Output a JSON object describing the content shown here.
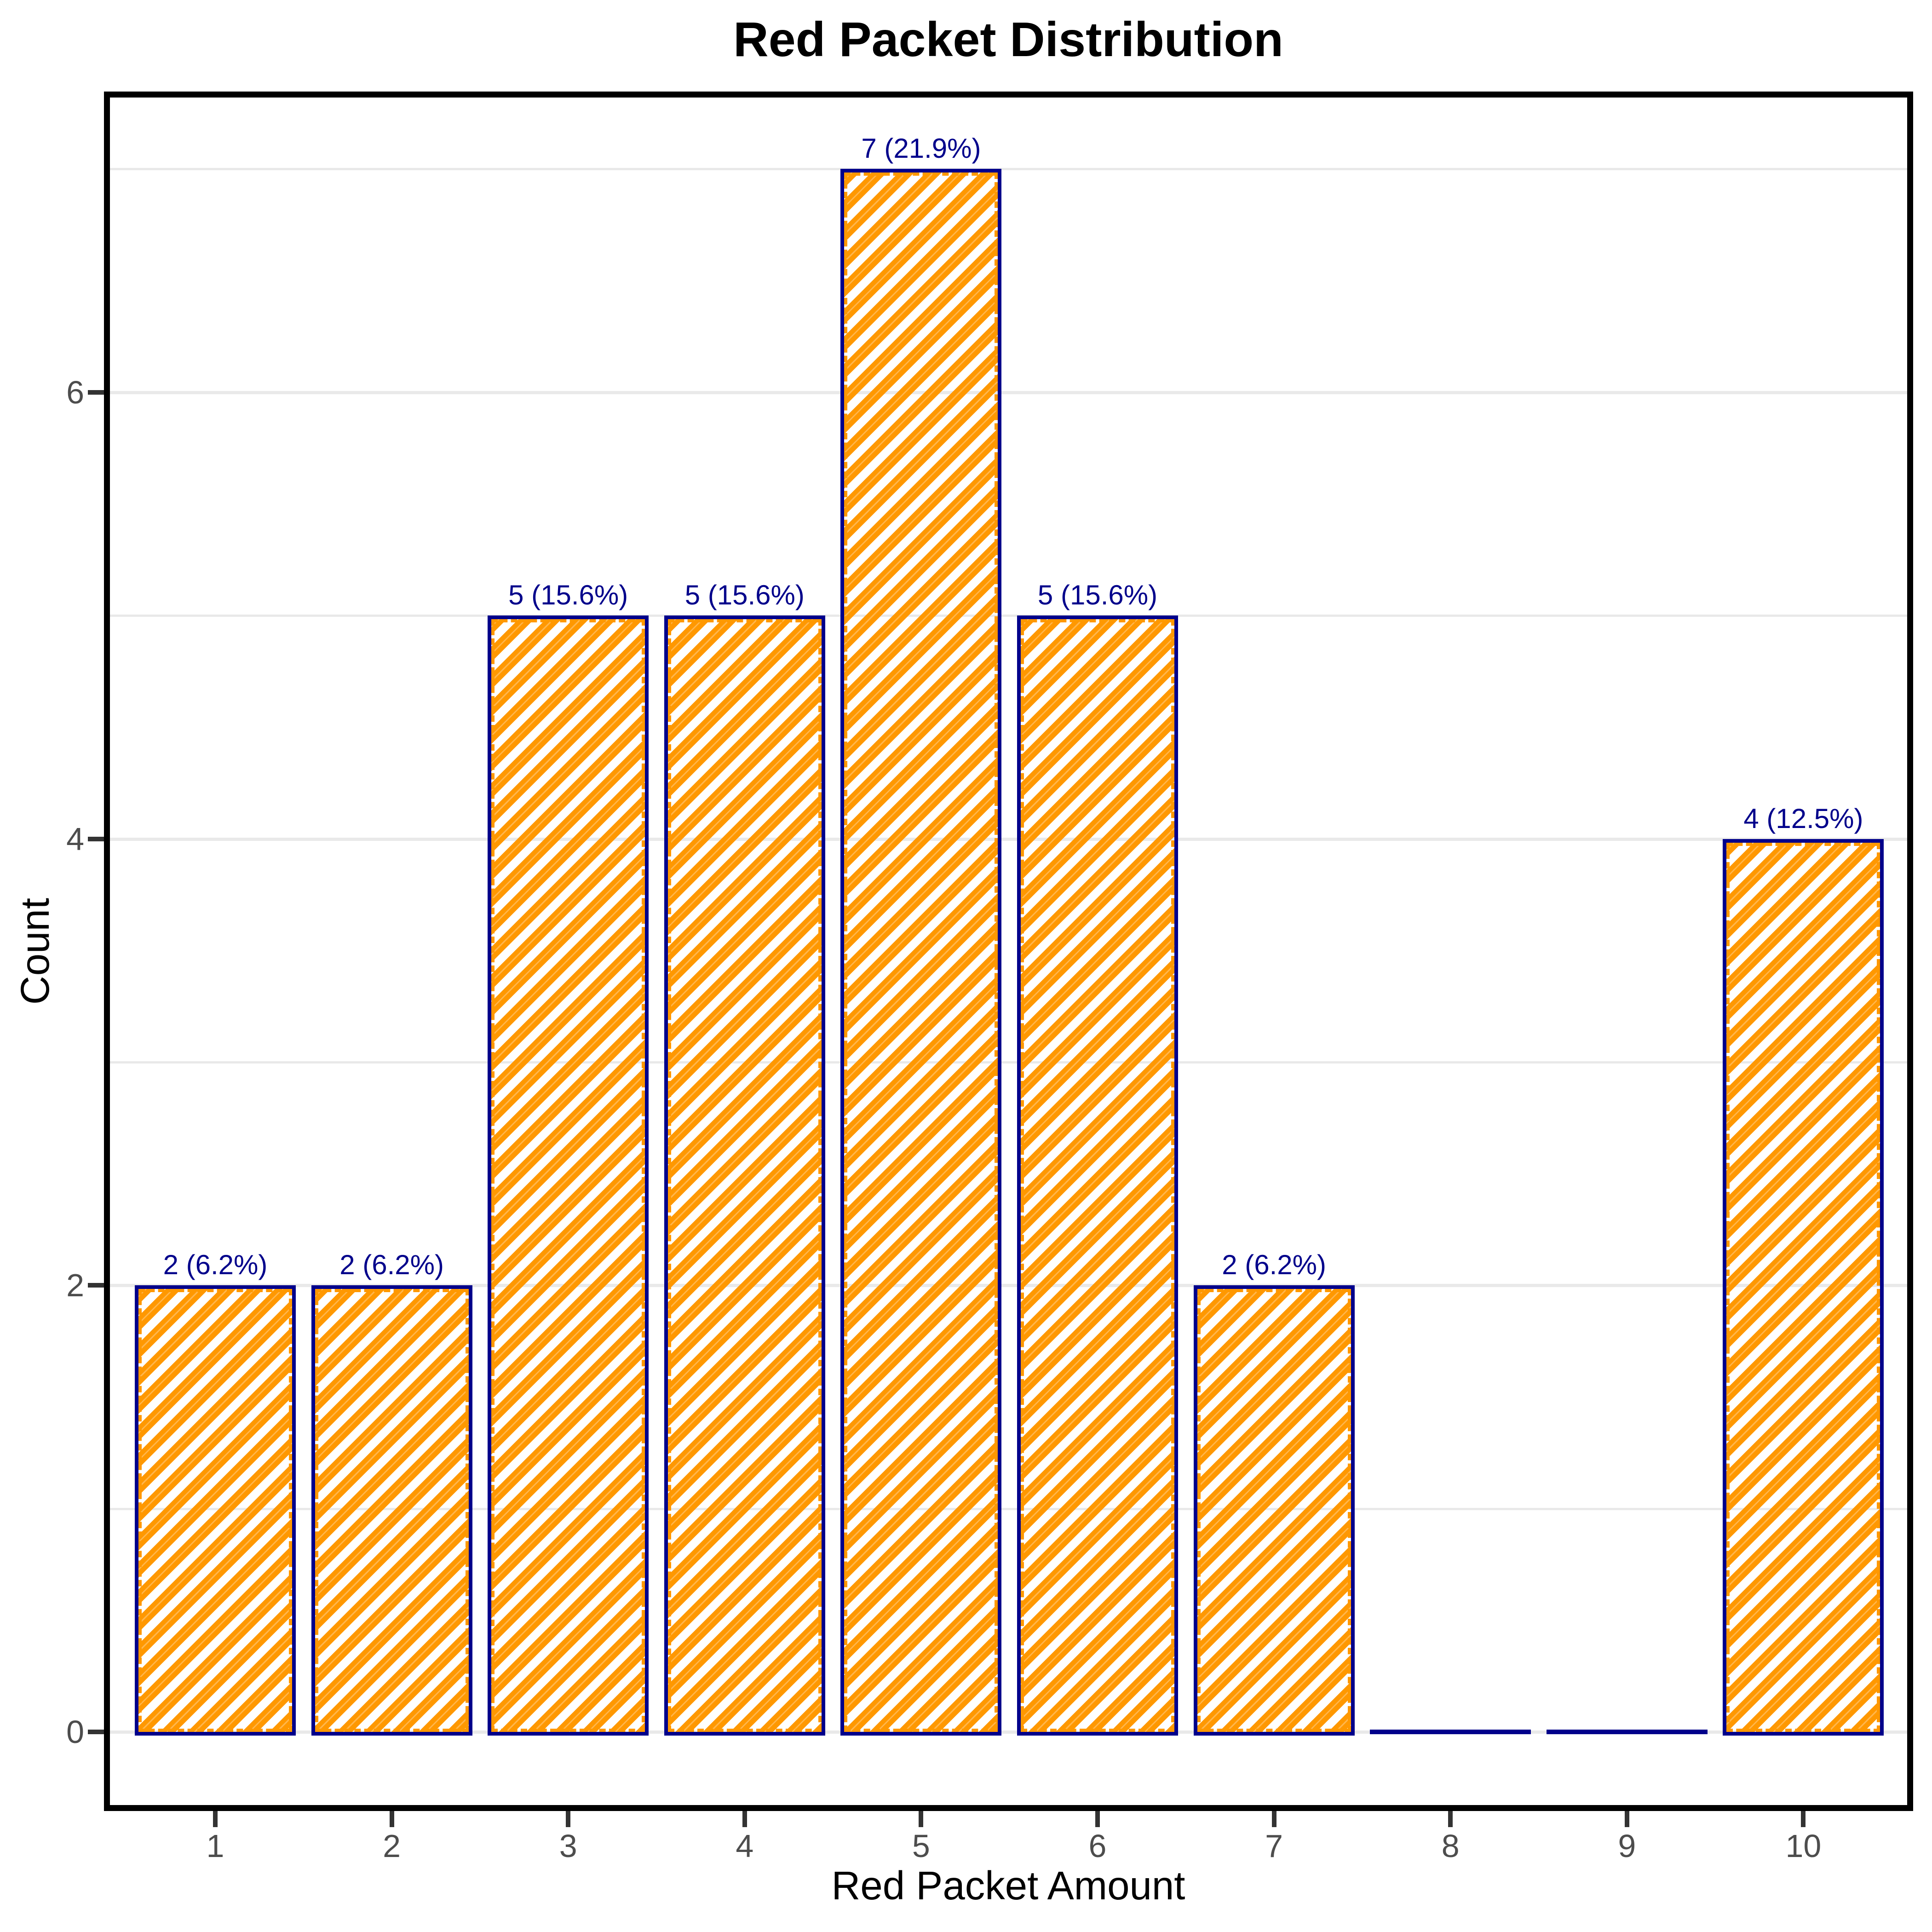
{
  "figure": {
    "title": "Red Packet Distribution"
  },
  "chart_data": {
    "type": "bar",
    "title": "Red Packet Distribution",
    "xlabel": "Red Packet Amount",
    "ylabel": "Count",
    "categories": [
      "1",
      "2",
      "3",
      "4",
      "5",
      "6",
      "7",
      "8",
      "9",
      "10"
    ],
    "values": [
      2,
      2,
      5,
      5,
      7,
      5,
      2,
      0,
      0,
      4
    ],
    "percent_labels": [
      "2 (6.2%)",
      "2 (6.2%)",
      "5 (15.6%)",
      "5 (15.6%)",
      "7 (21.9%)",
      "5 (15.6%)",
      "2 (6.2%)",
      "",
      "",
      "4 (12.5%)"
    ],
    "y_ticks": [
      "0",
      "2",
      "4",
      "6"
    ],
    "y_tick_values": [
      0,
      2,
      4,
      6
    ],
    "y_gridlines_major": [
      0,
      2,
      4,
      6
    ],
    "y_gridlines_minor": [
      1,
      3,
      5,
      7
    ],
    "ylim": [
      -0.35,
      7.35
    ],
    "grid": "horizontal-only",
    "legend": "none",
    "bar_style": "diagonal-hatch-45deg",
    "colors": {
      "bar_fill": "#FF9800",
      "bar_fill_light": "#FFB64D",
      "bar_border": "#00008B",
      "value_label": "#00008B",
      "gridline": "#E9E9E9",
      "axis_text": "#4D4D4D",
      "axis_title": "#000000",
      "panel_border": "#000000",
      "tick_mark": "#333333",
      "background": "#FFFFFF"
    }
  }
}
